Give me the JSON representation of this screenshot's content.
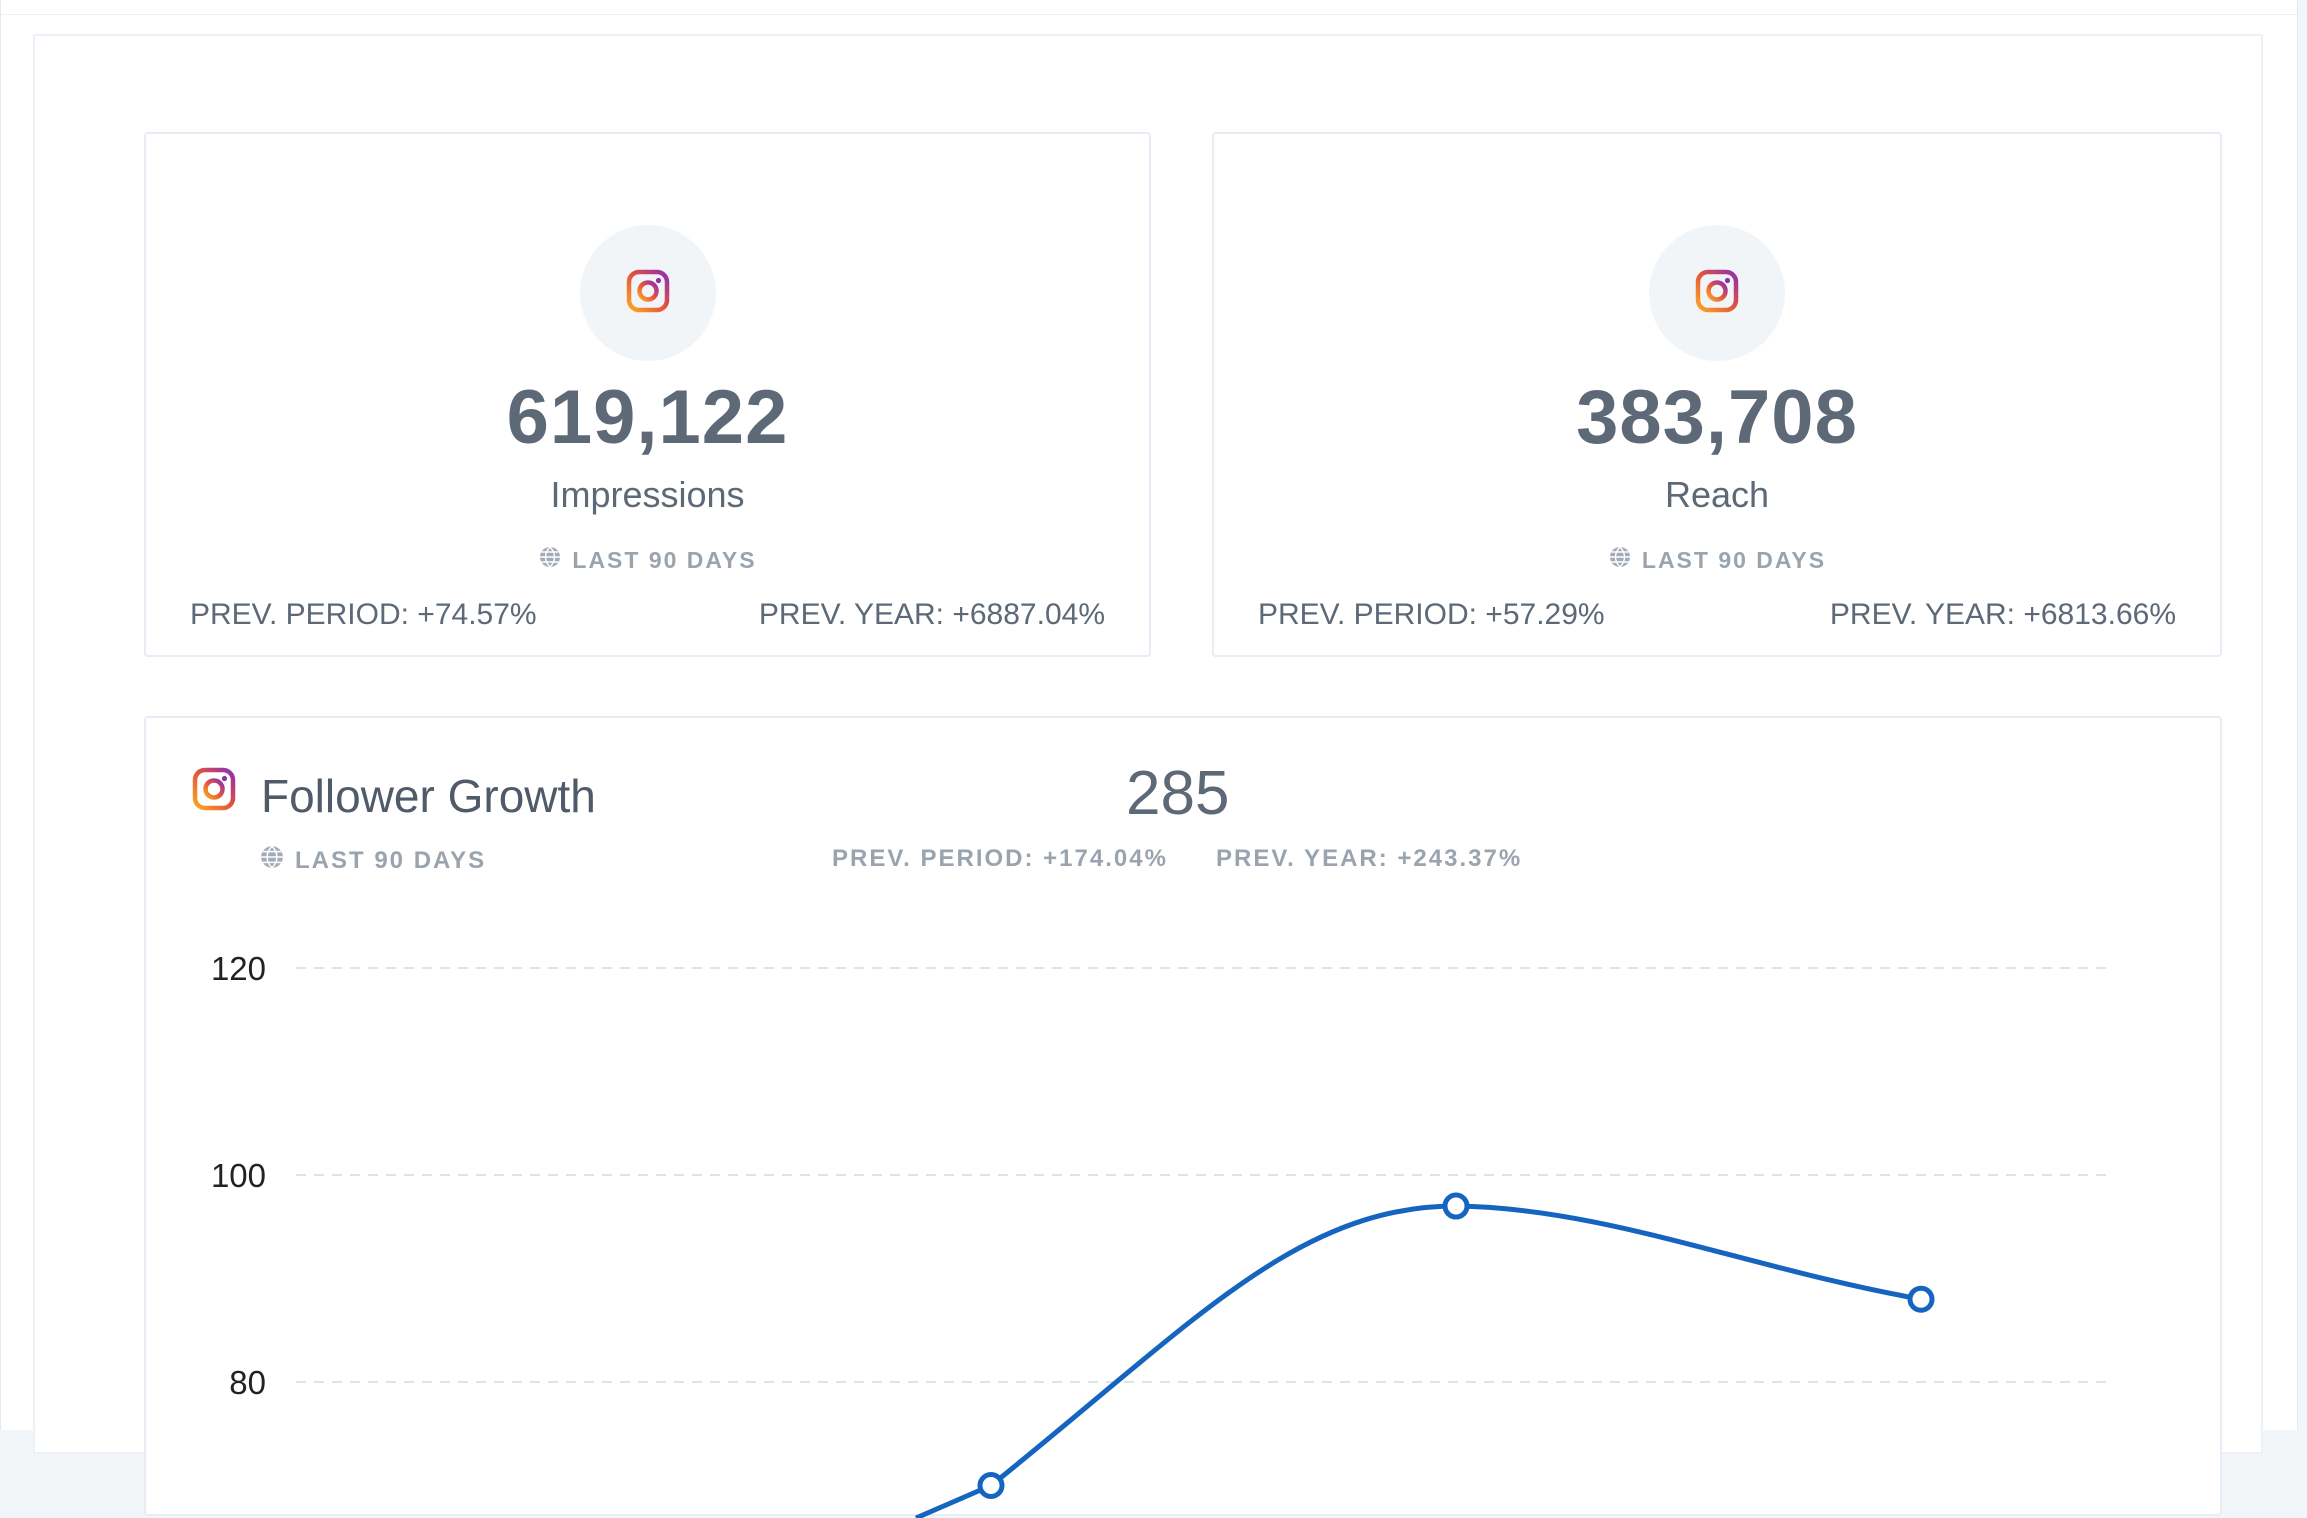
{
  "cards": [
    {
      "id": "impressions",
      "platform_icon": "instagram-icon",
      "value": "619,122",
      "label": "Impressions",
      "period": "LAST 90 DAYS",
      "prev_period": "PREV. PERIOD: +74.57%",
      "prev_year": "PREV. YEAR: +6887.04%"
    },
    {
      "id": "reach",
      "platform_icon": "instagram-icon",
      "value": "383,708",
      "label": "Reach",
      "period": "LAST 90 DAYS",
      "prev_period": "PREV. PERIOD: +57.29%",
      "prev_year": "PREV. YEAR: +6813.66%"
    }
  ],
  "follower_growth": {
    "title": "Follower Growth",
    "platform_icon": "instagram-icon",
    "period": "LAST 90 DAYS",
    "total": "285",
    "prev_period": "PREV. PERIOD: +174.04%",
    "prev_year": "PREV. YEAR: +243.37%"
  },
  "colors": {
    "line": "#1565c0",
    "text_dark": "#5d6977",
    "text_muted": "#9aa4ae",
    "icon_bg": "#f2f5f8"
  },
  "chart_data": {
    "type": "line",
    "title": "",
    "xlabel": "",
    "ylabel": "",
    "y_ticks": [
      120,
      100,
      80
    ],
    "ylim": [
      60,
      120
    ],
    "grid": true,
    "series": [
      {
        "values": [
          70,
          97,
          88
        ]
      }
    ]
  }
}
